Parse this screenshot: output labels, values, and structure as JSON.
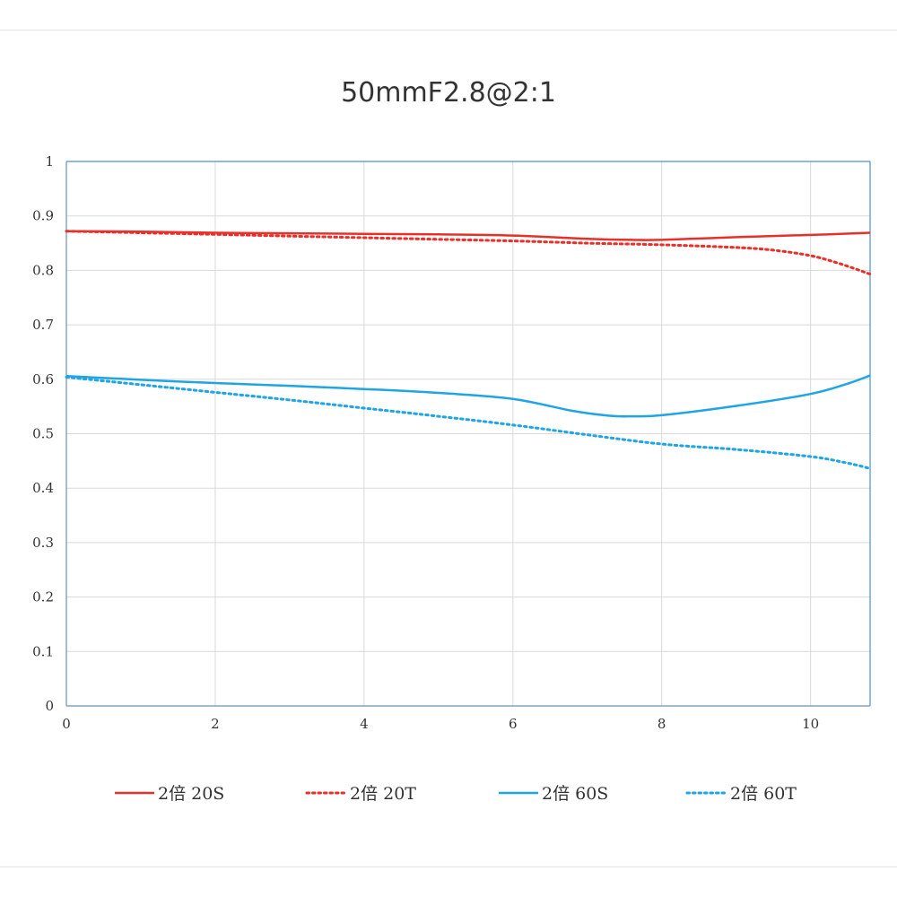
{
  "chart_data": {
    "type": "line",
    "title": "50mmF2.8@2:1",
    "xlabel": "",
    "ylabel": "",
    "xlim": [
      0,
      10.8
    ],
    "ylim": [
      0,
      1
    ],
    "xticks": [
      "0",
      "2",
      "4",
      "6",
      "8",
      "10"
    ],
    "yticks": [
      "0",
      "0.1",
      "0.2",
      "0.3",
      "0.4",
      "0.5",
      "0.6",
      "0.7",
      "0.8",
      "0.9",
      "1"
    ],
    "grid": true,
    "legend_position": "bottom",
    "series": [
      {
        "name": "2倍 20S",
        "color": "#e8302a",
        "style": "solid",
        "points": [
          [
            0,
            0.872
          ],
          [
            1,
            0.871
          ],
          [
            2,
            0.869
          ],
          [
            3,
            0.868
          ],
          [
            4,
            0.867
          ],
          [
            5,
            0.866
          ],
          [
            6,
            0.864
          ],
          [
            7,
            0.858
          ],
          [
            7.6,
            0.856
          ],
          [
            8,
            0.856
          ],
          [
            9,
            0.861
          ],
          [
            10,
            0.865
          ],
          [
            10.8,
            0.869
          ]
        ]
      },
      {
        "name": "2倍 20T",
        "color": "#e8302a",
        "style": "dotted",
        "points": [
          [
            0,
            0.872
          ],
          [
            1,
            0.869
          ],
          [
            2,
            0.866
          ],
          [
            3,
            0.863
          ],
          [
            4,
            0.86
          ],
          [
            5,
            0.857
          ],
          [
            6,
            0.854
          ],
          [
            7,
            0.85
          ],
          [
            8,
            0.847
          ],
          [
            9,
            0.842
          ],
          [
            9.5,
            0.837
          ],
          [
            10,
            0.827
          ],
          [
            10.4,
            0.812
          ],
          [
            10.8,
            0.793
          ]
        ]
      },
      {
        "name": "2倍 60S",
        "color": "#1fa4e4",
        "style": "solid",
        "points": [
          [
            0,
            0.606
          ],
          [
            1,
            0.599
          ],
          [
            2,
            0.593
          ],
          [
            3,
            0.588
          ],
          [
            4,
            0.582
          ],
          [
            5,
            0.575
          ],
          [
            6,
            0.564
          ],
          [
            6.8,
            0.542
          ],
          [
            7.3,
            0.533
          ],
          [
            7.6,
            0.532
          ],
          [
            8,
            0.534
          ],
          [
            9,
            0.551
          ],
          [
            10,
            0.573
          ],
          [
            10.5,
            0.592
          ],
          [
            10.8,
            0.607
          ]
        ]
      },
      {
        "name": "2倍 60T",
        "color": "#1fa4e4",
        "style": "dotted",
        "points": [
          [
            0,
            0.604
          ],
          [
            1,
            0.59
          ],
          [
            2,
            0.576
          ],
          [
            3,
            0.562
          ],
          [
            4,
            0.547
          ],
          [
            5,
            0.532
          ],
          [
            6,
            0.516
          ],
          [
            7,
            0.498
          ],
          [
            8,
            0.481
          ],
          [
            9,
            0.471
          ],
          [
            10,
            0.458
          ],
          [
            10.5,
            0.446
          ],
          [
            10.8,
            0.436
          ]
        ]
      }
    ]
  }
}
